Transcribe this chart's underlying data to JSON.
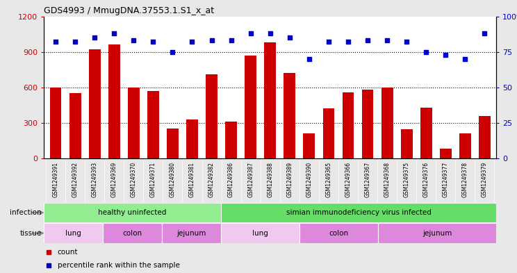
{
  "title": "GDS4993 / MmugDNA.37553.1.S1_x_at",
  "samples": [
    "GSM1249391",
    "GSM1249392",
    "GSM1249393",
    "GSM1249369",
    "GSM1249370",
    "GSM1249371",
    "GSM1249380",
    "GSM1249381",
    "GSM1249382",
    "GSM1249386",
    "GSM1249387",
    "GSM1249388",
    "GSM1249389",
    "GSM1249390",
    "GSM1249365",
    "GSM1249366",
    "GSM1249367",
    "GSM1249368",
    "GSM1249375",
    "GSM1249376",
    "GSM1249377",
    "GSM1249378",
    "GSM1249379"
  ],
  "counts": [
    600,
    550,
    920,
    960,
    600,
    570,
    255,
    330,
    710,
    310,
    870,
    980,
    720,
    210,
    420,
    560,
    580,
    600,
    245,
    430,
    80,
    210,
    360
  ],
  "percentiles": [
    82,
    82,
    85,
    88,
    83,
    82,
    75,
    82,
    83,
    83,
    88,
    88,
    85,
    70,
    82,
    82,
    83,
    83,
    82,
    75,
    73,
    70,
    88
  ],
  "bar_color": "#cc0000",
  "dot_color": "#0000cc",
  "left_ylim": [
    0,
    1200
  ],
  "left_yticks": [
    0,
    300,
    600,
    900,
    1200
  ],
  "right_ylim": [
    0,
    100
  ],
  "right_yticks": [
    0,
    25,
    50,
    75,
    100
  ],
  "infection_groups": [
    {
      "label": "healthy uninfected",
      "start": 0,
      "end": 9,
      "color": "#90ee90"
    },
    {
      "label": "simian immunodeficiency virus infected",
      "start": 9,
      "end": 23,
      "color": "#66dd66"
    }
  ],
  "tissue_groups": [
    {
      "label": "lung",
      "start": 0,
      "end": 3,
      "color": "#f0c8f0"
    },
    {
      "label": "colon",
      "start": 3,
      "end": 6,
      "color": "#dd88dd"
    },
    {
      "label": "jejunum",
      "start": 6,
      "end": 9,
      "color": "#dd88dd"
    },
    {
      "label": "lung",
      "start": 9,
      "end": 13,
      "color": "#f0c8f0"
    },
    {
      "label": "colon",
      "start": 13,
      "end": 17,
      "color": "#dd88dd"
    },
    {
      "label": "jejunum",
      "start": 17,
      "end": 23,
      "color": "#dd88dd"
    }
  ],
  "bg_color": "#e8e8e8",
  "plot_bg": "#ffffff",
  "xtick_bg": "#d0d0d0",
  "grid_color": "#000000",
  "legend_count_color": "#cc0000",
  "legend_pct_color": "#0000cc"
}
